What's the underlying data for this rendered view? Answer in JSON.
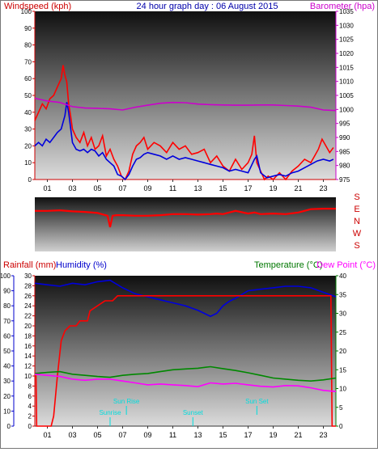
{
  "chart_data": [
    {
      "type": "line",
      "header": {
        "left_label": "Windspeed (kph)",
        "center_label": "24 hour graph day : 06 August 2015",
        "right_label": "Barometer (hpa)"
      },
      "x_ticks": [
        "01",
        "03",
        "05",
        "07",
        "09",
        "11",
        "13",
        "15",
        "17",
        "19",
        "21",
        "23"
      ],
      "xlim": [
        0,
        24
      ],
      "left_axis": {
        "ticks": [
          0,
          10,
          20,
          30,
          40,
          50,
          60,
          70,
          80,
          90,
          100
        ],
        "ylim": [
          0,
          100
        ]
      },
      "right_axis": {
        "ticks": [
          975,
          980,
          985,
          990,
          995,
          1000,
          1005,
          1010,
          1015,
          1020,
          1025,
          1030,
          1035
        ],
        "ylim": [
          975,
          1035
        ]
      },
      "series": [
        {
          "name": "gust",
          "color": "#ff0000",
          "axis": "left",
          "x": [
            0,
            0.3,
            0.6,
            0.9,
            1.2,
            1.5,
            1.8,
            2.1,
            2.25,
            2.4,
            2.55,
            2.7,
            2.85,
            3.0,
            3.3,
            3.6,
            3.9,
            4.2,
            4.5,
            4.8,
            5.1,
            5.4,
            5.7,
            6.0,
            6.3,
            6.6,
            6.9,
            7.2,
            7.5,
            7.8,
            8.1,
            8.4,
            8.7,
            9.0,
            9.5,
            10,
            10.5,
            11,
            11.5,
            12,
            12.5,
            13,
            13.5,
            14,
            14.5,
            15,
            15.5,
            16,
            16.5,
            17,
            17.3,
            17.5,
            17.7,
            18,
            18.3,
            18.6,
            19,
            19.5,
            20,
            20.5,
            21,
            21.5,
            22,
            22.3,
            22.6,
            22.9,
            23.2,
            23.5,
            23.8
          ],
          "values": [
            35,
            40,
            45,
            42,
            48,
            50,
            55,
            60,
            68,
            62,
            58,
            45,
            38,
            30,
            25,
            22,
            28,
            20,
            25,
            18,
            20,
            26,
            14,
            18,
            12,
            8,
            2,
            0,
            5,
            15,
            20,
            22,
            25,
            18,
            22,
            20,
            16,
            22,
            18,
            20,
            15,
            16,
            18,
            10,
            14,
            8,
            5,
            12,
            6,
            10,
            15,
            26,
            10,
            5,
            0,
            2,
            0,
            4,
            0,
            5,
            8,
            12,
            10,
            14,
            18,
            24,
            20,
            16,
            19
          ]
        },
        {
          "name": "average",
          "color": "#0000dd",
          "axis": "left",
          "x": [
            0,
            0.3,
            0.6,
            0.9,
            1.2,
            1.5,
            1.8,
            2.1,
            2.4,
            2.55,
            2.7,
            3.0,
            3.3,
            3.6,
            3.9,
            4.2,
            4.5,
            4.8,
            5.1,
            5.4,
            5.7,
            6.0,
            6.3,
            6.6,
            6.9,
            7.2,
            7.5,
            7.8,
            8.1,
            8.4,
            8.7,
            9.0,
            9.5,
            10,
            10.5,
            11,
            11.5,
            12,
            12.5,
            13,
            13.5,
            14,
            14.5,
            15,
            15.5,
            16,
            16.5,
            17,
            17.5,
            17.7,
            18,
            18.5,
            19,
            19.5,
            20,
            20.5,
            21,
            21.5,
            22,
            22.5,
            23,
            23.5,
            23.8
          ],
          "values": [
            20,
            22,
            20,
            24,
            22,
            25,
            28,
            30,
            38,
            46,
            40,
            22,
            18,
            17,
            18,
            16,
            18,
            17,
            14,
            16,
            12,
            10,
            8,
            3,
            2,
            0,
            3,
            8,
            12,
            13,
            15,
            16,
            15,
            14,
            12,
            14,
            12,
            13,
            12,
            11,
            10,
            9,
            8,
            7,
            5,
            6,
            5,
            4,
            12,
            14,
            4,
            1,
            2,
            3,
            2,
            4,
            5,
            7,
            9,
            11,
            12,
            11,
            12
          ]
        },
        {
          "name": "barometer",
          "color": "#cc00cc",
          "axis": "right",
          "x": [
            0,
            1,
            2,
            3,
            4,
            5,
            6,
            7,
            8,
            9,
            10,
            11,
            12,
            13,
            14,
            15,
            16,
            17,
            18,
            19,
            20,
            21,
            22,
            23,
            24
          ],
          "values": [
            1004,
            1003,
            1002.5,
            1001,
            1000.5,
            1000.4,
            1000.2,
            999.8,
            1000.8,
            1001.5,
            1002.2,
            1002.5,
            1002.4,
            1001.9,
            1001.7,
            1001.6,
            1001.5,
            1001.5,
            1001.6,
            1001.6,
            1001.4,
            1001.2,
            1000.8,
            999.8,
            999.6
          ]
        }
      ]
    },
    {
      "type": "line",
      "x_ticks": [],
      "xlim": [
        0,
        24
      ],
      "side_labels": [
        "S",
        "E",
        "N",
        "W",
        "S"
      ],
      "series": [
        {
          "name": "direction",
          "color": "#ff0000",
          "x": [
            0,
            1,
            2,
            3,
            4,
            5,
            5.8,
            6.0,
            6.2,
            6.5,
            7,
            8,
            9,
            10,
            11,
            12,
            13,
            14,
            14.5,
            15,
            16,
            17,
            17.5,
            18,
            19,
            20,
            21,
            22,
            23,
            24
          ],
          "values": [
            0.25,
            0.25,
            0.24,
            0.26,
            0.27,
            0.29,
            0.34,
            0.55,
            0.34,
            0.33,
            0.33,
            0.34,
            0.34,
            0.33,
            0.31,
            0.31,
            0.32,
            0.31,
            0.3,
            0.31,
            0.25,
            0.3,
            0.28,
            0.31,
            0.3,
            0.31,
            0.28,
            0.22,
            0.21,
            0.21
          ]
        }
      ]
    },
    {
      "type": "line",
      "header": {
        "rainfall_label": "Rainfall (mm)",
        "humidity_label": "Humidity (%)",
        "temperature_label": "Temperature (°C)",
        "dewpoint_label": "Dew Point (°C)"
      },
      "x_ticks": [
        "01",
        "03",
        "05",
        "07",
        "09",
        "11",
        "13",
        "15",
        "17",
        "19",
        "21",
        "23"
      ],
      "xlim": [
        0,
        24
      ],
      "humidity_axis": {
        "ticks": [
          0,
          10,
          20,
          30,
          40,
          50,
          60,
          70,
          80,
          90,
          100
        ],
        "ylim": [
          0,
          100
        ]
      },
      "rain_axis": {
        "ticks": [
          0,
          2,
          4,
          6,
          8,
          10,
          12,
          14,
          16,
          18,
          20,
          22,
          24,
          26,
          28,
          30
        ],
        "ylim": [
          0,
          30
        ]
      },
      "temp_axis": {
        "ticks": [
          0,
          5,
          10,
          15,
          20,
          25,
          30,
          35,
          40
        ],
        "ylim": [
          0,
          40
        ]
      },
      "annotations": [
        {
          "label": "Sunrise",
          "x": 6.0
        },
        {
          "label": "Sun Rise",
          "x": 7.3
        },
        {
          "label": "Sunset",
          "x": 12.6
        },
        {
          "label": "Sun Set",
          "x": 17.7
        }
      ],
      "series": [
        {
          "name": "humidity",
          "color": "#0000dd",
          "axis": "humidity",
          "x": [
            0,
            1,
            2,
            3,
            4,
            5,
            6,
            7,
            8,
            9,
            10,
            11,
            12,
            13,
            14,
            14.5,
            15,
            15.5,
            16,
            17,
            18,
            19,
            20,
            21,
            22,
            23,
            24
          ],
          "values": [
            95,
            94,
            93,
            95,
            94,
            96,
            97,
            92,
            88,
            86,
            84,
            82,
            80,
            77,
            73,
            75,
            80,
            83,
            85,
            90,
            91,
            92,
            93,
            93,
            92,
            89,
            86
          ]
        },
        {
          "name": "rainfall",
          "color": "#ff0000",
          "axis": "rain",
          "x": [
            0,
            0.1,
            0.15,
            0.5,
            1.0,
            1.3,
            1.5,
            1.8,
            2.1,
            2.4,
            2.8,
            3.3,
            3.6,
            4.2,
            4.4,
            5.0,
            5.6,
            6.2,
            6.6,
            7.0,
            8.0,
            10.0,
            12.0,
            14.0,
            16.0,
            18.0,
            20.0,
            22.0,
            23.6,
            23.7,
            24
          ],
          "values": [
            10,
            10,
            0,
            0,
            0,
            0,
            2,
            10,
            17,
            19,
            20,
            20,
            21,
            21,
            23,
            24,
            25,
            25,
            26,
            26,
            26,
            26,
            26,
            26,
            26,
            26,
            26,
            26,
            26,
            0,
            0
          ]
        },
        {
          "name": "temperature",
          "color": "#008800",
          "axis": "temp",
          "x": [
            0,
            1,
            2,
            3,
            4,
            5,
            6,
            7,
            8,
            9,
            10,
            11,
            12,
            13,
            14,
            15,
            16,
            17,
            18,
            19,
            20,
            21,
            22,
            23,
            24
          ],
          "values": [
            14,
            14.3,
            14.5,
            13.8,
            13.5,
            13.2,
            13,
            13.5,
            13.8,
            14,
            14.5,
            15,
            15.2,
            15.4,
            15.8,
            15.3,
            14.8,
            14.2,
            13.5,
            12.8,
            12.5,
            12.2,
            12,
            12.3,
            12.8
          ]
        },
        {
          "name": "dew point",
          "color": "#ff00ff",
          "axis": "temp",
          "x": [
            0,
            1,
            2,
            3,
            4,
            5,
            6,
            7,
            8,
            9,
            10,
            11,
            12,
            13,
            14,
            15,
            16,
            17,
            18,
            19,
            20,
            21,
            22,
            23,
            24
          ],
          "values": [
            13.8,
            13.5,
            13.2,
            12.5,
            12.2,
            12.5,
            12.5,
            12,
            11.5,
            11,
            11.2,
            11,
            10.8,
            10.5,
            11.5,
            11.2,
            11.4,
            11,
            10.6,
            10.4,
            10.8,
            10.7,
            10.2,
            9.5,
            9.2
          ]
        }
      ]
    }
  ],
  "colors": {
    "plot_bg_top": "#101010",
    "plot_bg_bottom": "#d8d8d8",
    "wind_axis": "#cc0000",
    "baro_axis": "#cc00cc",
    "title": "#0000aa",
    "humidity_axis": "#0000cc",
    "temp_axis": "#007700",
    "sun_marker": "#00dddd"
  }
}
